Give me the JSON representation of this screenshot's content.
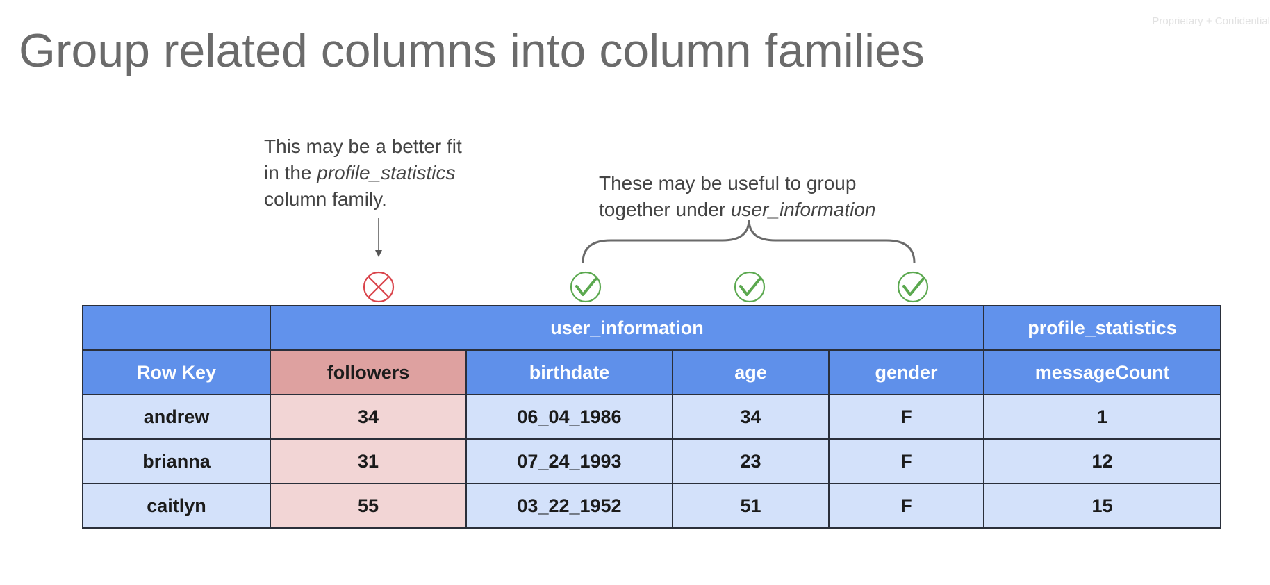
{
  "watermark": "Proprietary + Confidential",
  "title": "Group related columns into column families",
  "notes": {
    "left": {
      "line1": "This may be a better fit",
      "line2_prefix": "in the ",
      "line2_em": "profile_statistics",
      "line3": "column family."
    },
    "right": {
      "line1": "These may be useful to group",
      "line2_prefix": "together under ",
      "line2_em": "user_information"
    }
  },
  "markers": [
    {
      "column": "followers",
      "icon": "x-circle-icon",
      "color": "#d9434a"
    },
    {
      "column": "birthdate",
      "icon": "check-circle-icon",
      "color": "#5ba84f"
    },
    {
      "column": "age",
      "icon": "check-circle-icon",
      "color": "#5ba84f"
    },
    {
      "column": "gender",
      "icon": "check-circle-icon",
      "color": "#5ba84f"
    }
  ],
  "table": {
    "families": {
      "user_information": "user_information",
      "profile_statistics": "profile_statistics"
    },
    "columns": [
      "Row Key",
      "followers",
      "birthdate",
      "age",
      "gender",
      "messageCount"
    ],
    "rows": [
      [
        "andrew",
        "34",
        "06_04_1986",
        "34",
        "F",
        "1"
      ],
      [
        "brianna",
        "31",
        "07_24_1993",
        "23",
        "F",
        "12"
      ],
      [
        "caitlyn",
        "55",
        "03_22_1952",
        "51",
        "F",
        "15"
      ]
    ]
  },
  "colors": {
    "header_blue": "#6192ec",
    "cell_blue": "#d3e1fa",
    "highlight_header": "#dea1a0",
    "highlight_cell": "#f2d5d5",
    "title_gray": "#6b6b6b"
  }
}
